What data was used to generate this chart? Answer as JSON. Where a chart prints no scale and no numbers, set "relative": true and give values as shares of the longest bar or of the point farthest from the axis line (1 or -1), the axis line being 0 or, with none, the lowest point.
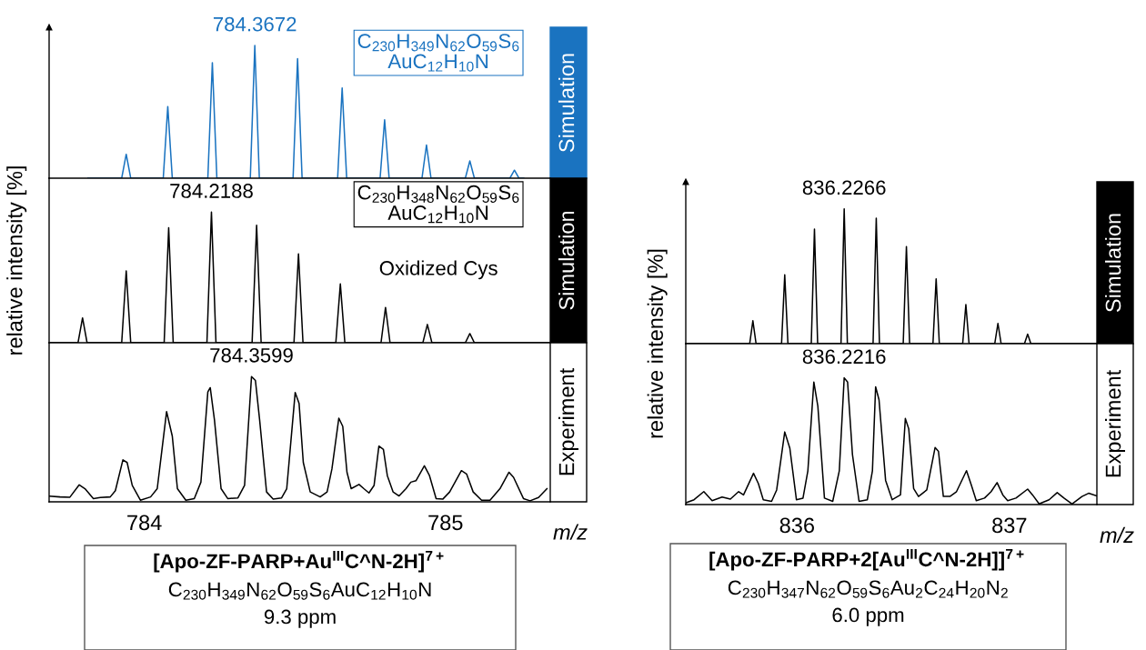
{
  "chart_data": [
    {
      "type": "line",
      "relative": true,
      "title": "Simulation",
      "xlim": [
        783.684,
        785.348
      ],
      "tick_labels": false,
      "series": [
        {
          "color": "#1a73c0",
          "x": [
            783.813,
            783.925,
            783.94,
            783.955,
            784.063,
            784.078,
            784.093,
            784.211,
            784.226,
            784.241,
            784.352,
            784.367,
            784.382,
            784.494,
            784.509,
            784.524,
            784.642,
            784.657,
            784.672,
            784.783,
            784.798,
            784.813,
            784.922,
            784.937,
            784.952,
            785.066,
            785.081,
            785.096,
            785.214,
            785.229,
            785.244,
            785.26
          ],
          "values": [
            0,
            0,
            0.18,
            0,
            0,
            0.54,
            0,
            0,
            0.87,
            0,
            0,
            1,
            0,
            0,
            0.9,
            0,
            0,
            0.68,
            0,
            0,
            0.44,
            0,
            0,
            0.25,
            0,
            0,
            0.13,
            0,
            0,
            0.06,
            0,
            0
          ]
        }
      ],
      "annotations": [
        {
          "text": "784.3672",
          "x": 784.367,
          "y": 1
        },
        "C$_{230}$H$_{349}$N$_{62}$O$_{59}$S$_{6}$",
        "AuC$_{12}$H$_{10}$N"
      ]
    },
    {
      "type": "line",
      "relative": true,
      "title": "Simulation",
      "xlim": [
        783.684,
        785.348
      ],
      "tick_labels": false,
      "ylabel": "relative intensity [%]",
      "series": [
        {
          "color": "#000000",
          "x": [
            783.684,
            783.78,
            783.795,
            783.81,
            783.925,
            783.94,
            783.955,
            784.066,
            784.081,
            784.096,
            784.208,
            784.223,
            784.238,
            784.358,
            784.373,
            784.388,
            784.497,
            784.512,
            784.527,
            784.636,
            784.651,
            784.666,
            784.786,
            784.801,
            784.816,
            784.925,
            784.94,
            784.955,
            785.066,
            785.081,
            785.096,
            785.348
          ],
          "values": [
            0,
            0,
            0.19,
            0,
            0,
            0.55,
            0,
            0,
            0.88,
            0,
            0,
            1,
            0,
            0,
            0.9,
            0,
            0,
            0.68,
            0,
            0,
            0.45,
            0,
            0,
            0.27,
            0,
            0,
            0.14,
            0,
            0,
            0.07,
            0,
            0
          ]
        }
      ],
      "annotations": [
        {
          "text": "784.2188",
          "x": 784.223,
          "y": 1
        },
        "C$_{230}$H$_{348}$N$_{62}$O$_{59}$S$_{6}$",
        "AuC$_{12}$H$_{10}$N",
        "Oxidized Cys"
      ]
    },
    {
      "type": "line",
      "relative": true,
      "title": "Experiment",
      "xlim": [
        783.684,
        785.348
      ],
      "xticks": [
        784,
        785
      ],
      "xlabel": "m/z",
      "tick_labels": "x",
      "series": [
        {
          "color": "#000000",
          "x": [
            783.684,
            783.72,
            783.753,
            783.784,
            783.803,
            783.831,
            783.854,
            783.887,
            783.904,
            783.929,
            783.943,
            783.96,
            783.987,
            784.021,
            784.043,
            784.074,
            784.093,
            784.11,
            784.138,
            784.166,
            784.188,
            784.211,
            784.219,
            784.233,
            784.255,
            784.277,
            784.311,
            784.333,
            784.356,
            784.369,
            784.383,
            784.406,
            784.428,
            784.456,
            784.473,
            784.501,
            784.514,
            784.528,
            784.551,
            784.584,
            784.607,
            784.623,
            784.646,
            784.659,
            784.673,
            784.687,
            784.713,
            784.729,
            784.746,
            784.763,
            784.779,
            784.794,
            784.807,
            784.826,
            784.846,
            784.869,
            784.885,
            784.902,
            784.93,
            784.947,
            784.969,
            784.991,
            785.014,
            785.053,
            785.07,
            785.092,
            785.12,
            785.148,
            785.181,
            785.211,
            785.226,
            785.259,
            785.281,
            785.309,
            785.337
          ],
          "values": [
            0.045,
            0.039,
            0.037,
            0.136,
            0.105,
            0.026,
            0.034,
            0.039,
            0.089,
            0.335,
            0.314,
            0.131,
            0.013,
            0.039,
            0.105,
            0.72,
            0.524,
            0.105,
            0.013,
            0.026,
            0.157,
            0.877,
            0.911,
            0.654,
            0.105,
            0.026,
            0.031,
            0.131,
            1.0,
            0.969,
            0.654,
            0.079,
            0.021,
            0.031,
            0.105,
            0.872,
            0.785,
            0.314,
            0.079,
            0.039,
            0.079,
            0.262,
            0.668,
            0.602,
            0.236,
            0.105,
            0.139,
            0.105,
            0.071,
            0.131,
            0.445,
            0.419,
            0.209,
            0.079,
            0.047,
            0.105,
            0.157,
            0.168,
            0.288,
            0.209,
            0.026,
            0.021,
            0.079,
            0.249,
            0.223,
            0.079,
            0.013,
            0.013,
            0.105,
            0.236,
            0.196,
            0.026,
            0.008,
            0.034,
            0.105
          ]
        }
      ],
      "annotations": [
        {
          "text": "784.3599",
          "x": 784.356,
          "y": 1.0
        },
        "[Apo-ZF-PARP+Au$^{III}$C^N-2H]$^{7+}$",
        "C$_{230}$H$_{349}$N$_{62}$O$_{59}$S$_{6}$AuC$_{12}$H$_{10}$N",
        "9.3 ppm"
      ]
    },
    {
      "type": "line",
      "relative": true,
      "title": "Simulation",
      "xlim": [
        835.476,
        837.412
      ],
      "tick_labels": false,
      "ylabel": "relative intensity [%]",
      "series": [
        {
          "color": "#000000",
          "x": [
            835.476,
            835.777,
            835.792,
            835.807,
            835.927,
            835.942,
            835.957,
            836.067,
            836.082,
            836.097,
            836.207,
            836.222,
            836.237,
            836.358,
            836.373,
            836.388,
            836.5,
            836.515,
            836.53,
            836.64,
            836.655,
            836.67,
            836.78,
            836.795,
            836.81,
            836.931,
            836.946,
            836.961,
            837.071,
            837.086,
            837.101,
            837.412
          ],
          "values": [
            0,
            0,
            0.17,
            0,
            0,
            0.51,
            0,
            0,
            0.85,
            0,
            0,
            1,
            0,
            0,
            0.93,
            0,
            0,
            0.72,
            0,
            0,
            0.48,
            0,
            0,
            0.29,
            0,
            0,
            0.15,
            0,
            0,
            0.07,
            0,
            0
          ]
        }
      ],
      "annotations": [
        {
          "text": "836.2266",
          "x": 836.222,
          "y": 1
        }
      ]
    },
    {
      "type": "line",
      "relative": true,
      "title": "Experiment",
      "xlim": [
        835.476,
        837.412
      ],
      "xticks": [
        836,
        837
      ],
      "xlabel": "m/z",
      "tick_labels": "x",
      "series": [
        {
          "color": "#000000",
          "x": [
            835.476,
            835.515,
            835.561,
            835.6,
            835.647,
            835.686,
            835.725,
            835.748,
            835.795,
            835.818,
            835.841,
            835.88,
            835.904,
            835.942,
            835.966,
            835.997,
            836.028,
            836.051,
            836.079,
            836.098,
            836.129,
            836.168,
            836.199,
            836.222,
            836.238,
            836.261,
            836.292,
            836.331,
            836.355,
            836.37,
            836.386,
            836.417,
            836.448,
            836.487,
            836.51,
            836.526,
            836.549,
            836.572,
            836.611,
            836.65,
            836.666,
            836.689,
            836.72,
            836.751,
            836.798,
            836.821,
            836.844,
            836.883,
            836.914,
            836.942,
            836.969,
            836.992,
            837.031,
            837.086,
            837.109,
            837.14,
            837.187,
            837.225,
            837.257,
            837.295,
            837.342,
            837.373,
            837.409
          ],
          "values": [
            0.013,
            0.038,
            0.102,
            0.031,
            0.059,
            0.043,
            0.102,
            0.076,
            0.247,
            0.165,
            0.038,
            0.025,
            0.115,
            0.573,
            0.445,
            0.038,
            0.051,
            0.267,
            0.967,
            0.776,
            0.051,
            0.025,
            0.267,
            1.0,
            0.967,
            0.394,
            0.025,
            0.038,
            0.267,
            0.929,
            0.827,
            0.191,
            0.038,
            0.076,
            0.679,
            0.598,
            0.127,
            0.064,
            0.115,
            0.45,
            0.42,
            0.064,
            0.064,
            0.102,
            0.267,
            0.153,
            0.031,
            0.051,
            0.102,
            0.173,
            0.076,
            0.031,
            0.051,
            0.122,
            0.076,
            0.005,
            0.038,
            0.094,
            0.051,
            0.005,
            0.064,
            0.089,
            0.069
          ]
        }
      ],
      "annotations": [
        {
          "text": "836.2216",
          "x": 836.222,
          "y": 1.0
        },
        "[Apo-ZF-PARP+2[Au$^{III}$C^N-2H]]$^{7+}$",
        "C$_{230}$H$_{347}$N$_{62}$O$_{59}$S$_{6}$Au$_{2}$C$_{24}$H$_{20}$N$_{2}$",
        "6.0 ppm"
      ]
    }
  ]
}
